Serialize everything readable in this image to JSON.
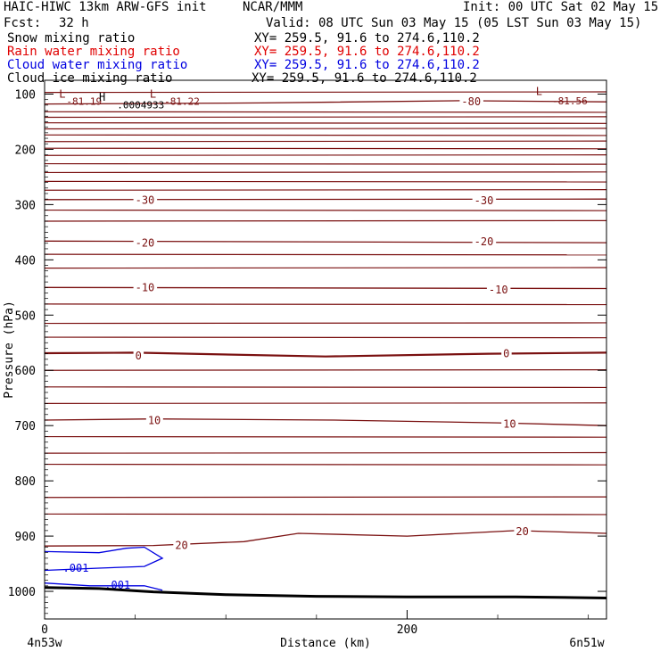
{
  "header": {
    "title": "HAIC-HIWC 13km ARW-GFS init",
    "center": "NCAR/MMM",
    "init": "Init: 00 UTC Sat 02 May 15",
    "fcst_label": "Fcst:",
    "fcst_value": "32 h",
    "valid": "Valid: 08 UTC Sun 03 May 15 (05 LST Sun 03 May 15)"
  },
  "fields": [
    {
      "name": "Snow mixing ratio",
      "xy": "XY= 259.5, 91.6 to 274.6,110.2",
      "color": "#000000"
    },
    {
      "name": "Rain water mixing ratio",
      "xy": "XY= 259.5, 91.6 to 274.6,110.2",
      "color": "#e00000"
    },
    {
      "name": "Cloud water mixing ratio",
      "xy": "XY= 259.5, 91.6 to 274.6,110.2",
      "color": "#0000e0"
    },
    {
      "name": "Cloud ice mixing ratio",
      "xy": "XY= 259.5, 91.6 to 274.6,110.2",
      "color": "#000000"
    }
  ],
  "chart_data": {
    "type": "line",
    "xlabel": "Distance (km)",
    "ylabel": "Pressure (hPa)",
    "xlim": [
      0,
      310
    ],
    "ylim": [
      1050,
      75
    ],
    "x_ticks": [
      0,
      200
    ],
    "y_ticks": [
      100,
      200,
      300,
      400,
      500,
      600,
      700,
      800,
      900,
      1000
    ],
    "x_tick_labels": [
      "0",
      "200"
    ],
    "y_tick_labels": [
      "100",
      "200",
      "300",
      "400",
      "500",
      "600",
      "700",
      "800",
      "900",
      "1000"
    ],
    "x_endpoint_labels": [
      "4n53w",
      "6n51w"
    ],
    "temperature_color": "#7a1010",
    "cloud_water_color": "#0000e0",
    "ground_color": "#000000",
    "temperature_contours": [
      {
        "label": "-30",
        "x": [
          0,
          310
        ],
        "p": [
          291,
          290
        ],
        "label_at": [
          [
            50,
            292
          ],
          [
            237,
            293
          ]
        ]
      },
      {
        "label": "-20",
        "x": [
          0,
          310
        ],
        "p": [
          366,
          369
        ],
        "label_at": [
          [
            50,
            370
          ],
          [
            237,
            367
          ]
        ]
      },
      {
        "label": "-10",
        "x": [
          0,
          310
        ],
        "p": [
          450,
          452
        ],
        "label_at": [
          [
            50,
            450
          ],
          [
            245,
            454
          ]
        ]
      },
      {
        "label": "0",
        "x": [
          0,
          50,
          155,
          245,
          310
        ],
        "p": [
          569,
          568,
          575,
          570,
          568
        ],
        "label_at": [
          [
            50,
            574
          ],
          [
            253,
            570
          ]
        ]
      },
      {
        "label": "10",
        "x": [
          0,
          60,
          160,
          250,
          310
        ],
        "p": [
          690,
          688,
          690,
          695,
          700
        ],
        "label_at": [
          [
            57,
            691
          ],
          [
            253,
            697
          ]
        ]
      },
      {
        "label": "20",
        "x": [
          0,
          60,
          110,
          140,
          200,
          260,
          310
        ],
        "p": [
          918,
          917,
          910,
          895,
          900,
          890,
          895
        ],
        "label_at": [
          [
            72,
            917
          ],
          [
            260,
            892
          ]
        ]
      },
      {
        "label": "-80",
        "x": [
          0,
          120,
          230,
          310
        ],
        "p": [
          118,
          116,
          112,
          114
        ],
        "label_at": [
          [
            230,
            114
          ]
        ]
      }
    ],
    "temperature_labels": [
      {
        "text": "-81.19",
        "x": 12,
        "p": 113
      },
      {
        "text": "-81.22",
        "x": 66,
        "p": 113
      },
      {
        "text": "-81.56",
        "x": 280,
        "p": 112
      },
      {
        "text": ".0004933",
        "x": 40,
        "p": 119
      }
    ],
    "extrema": [
      {
        "text": "L",
        "x": 8,
        "p": 100
      },
      {
        "text": "H",
        "x": 30,
        "p": 106
      },
      {
        "text": "L",
        "x": 58,
        "p": 100
      },
      {
        "text": "L",
        "x": 271,
        "p": 95
      }
    ],
    "cloud_water_contours": [
      {
        "label": ".001",
        "x": [
          0,
          30,
          45,
          55,
          65,
          55,
          30,
          0
        ],
        "p": [
          928,
          930,
          922,
          920,
          940,
          955,
          958,
          962
        ],
        "label_at": [
          [
            17,
            958
          ]
        ]
      },
      {
        "label": ".001",
        "x": [
          0,
          25,
          55,
          65
        ],
        "p": [
          985,
          990,
          990,
          998
        ],
        "label_at": [
          [
            40,
            989
          ]
        ]
      }
    ],
    "ground": {
      "x": [
        0,
        30,
        60,
        100,
        150,
        200,
        260,
        310
      ],
      "p": [
        993,
        995,
        1001,
        1006,
        1009,
        1010,
        1010,
        1012
      ]
    }
  }
}
